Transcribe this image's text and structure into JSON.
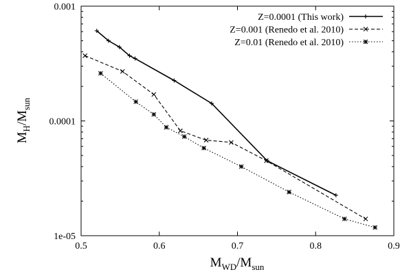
{
  "chart_data": {
    "type": "line",
    "xlabel": {
      "main": "M",
      "sub1": "WD",
      "mid": "/M",
      "sub2": "sun"
    },
    "ylabel": {
      "main": "M",
      "sub1": "H",
      "mid": "/M",
      "sub2": "sun"
    },
    "xlim": [
      0.5,
      0.9
    ],
    "ylim": [
      1e-05,
      0.001
    ],
    "yscale": "log",
    "xticks": [
      {
        "value": 0.5,
        "label": "0.5"
      },
      {
        "value": 0.6,
        "label": "0.6"
      },
      {
        "value": 0.7,
        "label": "0.7"
      },
      {
        "value": 0.8,
        "label": "0.8"
      },
      {
        "value": 0.9,
        "label": "0.9"
      }
    ],
    "yticks": [
      {
        "value": 1e-05,
        "label": "1e-05"
      },
      {
        "value": 0.0001,
        "label": "0.0001"
      },
      {
        "value": 0.001,
        "label": "0.001"
      }
    ],
    "grid": false,
    "legend_position": "top-right",
    "series": [
      {
        "name": "Z=0.0001 (This work)",
        "line": "solid",
        "marker": "plus",
        "points": [
          {
            "x": 0.52,
            "y": 0.00061
          },
          {
            "x": 0.535,
            "y": 0.0005
          },
          {
            "x": 0.549,
            "y": 0.00044
          },
          {
            "x": 0.562,
            "y": 0.00037
          },
          {
            "x": 0.569,
            "y": 0.00035
          },
          {
            "x": 0.619,
            "y": 0.000225
          },
          {
            "x": 0.667,
            "y": 0.000142
          },
          {
            "x": 0.738,
            "y": 4.5e-05
          },
          {
            "x": 0.826,
            "y": 2.25e-05
          }
        ]
      },
      {
        "name": "Z=0.001 (Renedo et al. 2010)",
        "line": "dashed",
        "marker": "cross",
        "points": [
          {
            "x": 0.505,
            "y": 0.00037
          },
          {
            "x": 0.553,
            "y": 0.00027
          },
          {
            "x": 0.593,
            "y": 0.00017
          },
          {
            "x": 0.627,
            "y": 8.2e-05
          },
          {
            "x": 0.66,
            "y": 6.8e-05
          },
          {
            "x": 0.692,
            "y": 6.5e-05
          },
          {
            "x": 0.737,
            "y": 4.5e-05
          },
          {
            "x": 0.864,
            "y": 1.4e-05
          }
        ]
      },
      {
        "name": "Z=0.01 (Renedo et al. 2010)",
        "line": "dotted",
        "marker": "star",
        "points": [
          {
            "x": 0.525,
            "y": 0.00026
          },
          {
            "x": 0.57,
            "y": 0.000147
          },
          {
            "x": 0.593,
            "y": 0.000114
          },
          {
            "x": 0.609,
            "y": 8.8e-05
          },
          {
            "x": 0.632,
            "y": 7.3e-05
          },
          {
            "x": 0.657,
            "y": 5.8e-05
          },
          {
            "x": 0.705,
            "y": 4e-05
          },
          {
            "x": 0.766,
            "y": 2.4e-05
          },
          {
            "x": 0.837,
            "y": 1.4e-05
          },
          {
            "x": 0.876,
            "y": 1.18e-05
          }
        ]
      }
    ]
  }
}
